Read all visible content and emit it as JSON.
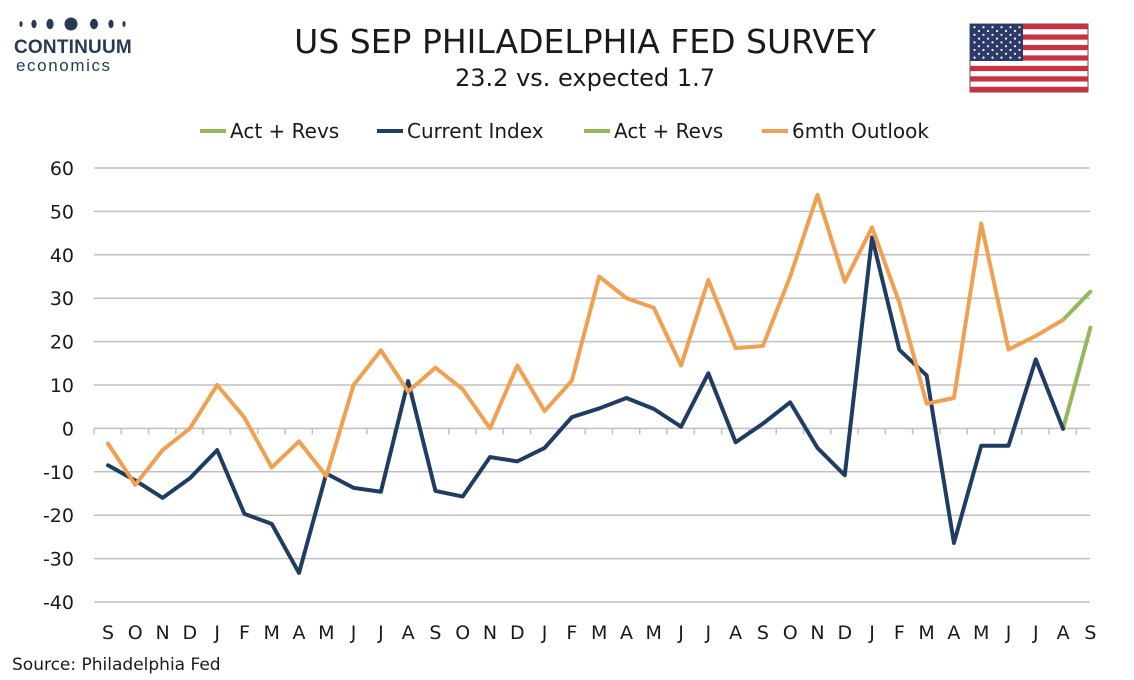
{
  "logo": {
    "name": "CONTINUUM",
    "tagline": "economics"
  },
  "chart_data": {
    "type": "line",
    "title": "US SEP PHILADELPHIA FED SURVEY",
    "subtitle": "23.2 vs. expected 1.7",
    "source": "Source: Philadelphia Fed",
    "categories": [
      "S",
      "O",
      "N",
      "D",
      "J",
      "F",
      "M",
      "A",
      "M",
      "J",
      "J",
      "A",
      "S",
      "O",
      "N",
      "D",
      "J",
      "F",
      "M",
      "A",
      "M",
      "J",
      "J",
      "A",
      "S",
      "O",
      "N",
      "D",
      "J",
      "F",
      "M",
      "A",
      "M",
      "J",
      "J",
      "A",
      "S"
    ],
    "ylim": [
      -40,
      60
    ],
    "yticks": [
      -40,
      -30,
      -20,
      -10,
      0,
      10,
      20,
      30,
      40,
      50,
      60
    ],
    "grid": true,
    "legend_position": "top",
    "legend": [
      "Act + Revs",
      "Current Index",
      "Act + Revs",
      "6mth Outlook"
    ],
    "series": [
      {
        "name": "Current Index",
        "color": "#1f3d63",
        "values": [
          -8.5,
          -12,
          -16,
          -11.5,
          -5,
          -19.7,
          -22,
          -33.3,
          -10.4,
          -13.7,
          -14.6,
          10.9,
          -14.4,
          -15.7,
          -6.6,
          -7.6,
          -4.5,
          2.6,
          4.6,
          7,
          4.5,
          0.4,
          12.7,
          -3.2,
          1.1,
          6,
          -4.5,
          -10.8,
          44,
          18.1,
          12.2,
          -26.4,
          -4,
          -4,
          15.9,
          -0.1,
          null
        ]
      },
      {
        "name": "Act + Revs",
        "color": "#93b958",
        "values": [
          null,
          null,
          null,
          null,
          null,
          null,
          null,
          null,
          null,
          null,
          null,
          null,
          null,
          null,
          null,
          null,
          null,
          null,
          null,
          null,
          null,
          null,
          null,
          null,
          null,
          null,
          null,
          null,
          null,
          null,
          null,
          null,
          null,
          null,
          null,
          -0.1,
          23.2
        ]
      },
      {
        "name": "6mth Outlook",
        "color": "#f0a050",
        "values": [
          -3.5,
          -13,
          -5,
          0,
          10,
          2.5,
          -9,
          -3,
          -11,
          10,
          18,
          8.5,
          14,
          9,
          0,
          14.5,
          4,
          11,
          35,
          30,
          27.8,
          14.5,
          34.2,
          18.5,
          19,
          35,
          53.8,
          33.8,
          46.3,
          29,
          5.7,
          7,
          47.2,
          18.2,
          21.3,
          25,
          null
        ]
      },
      {
        "name": "Act + Revs",
        "color": "#93b958",
        "values": [
          null,
          null,
          null,
          null,
          null,
          null,
          null,
          null,
          null,
          null,
          null,
          null,
          null,
          null,
          null,
          null,
          null,
          null,
          null,
          null,
          null,
          null,
          null,
          null,
          null,
          null,
          null,
          null,
          null,
          null,
          null,
          null,
          null,
          null,
          null,
          25,
          31.5
        ]
      }
    ]
  }
}
